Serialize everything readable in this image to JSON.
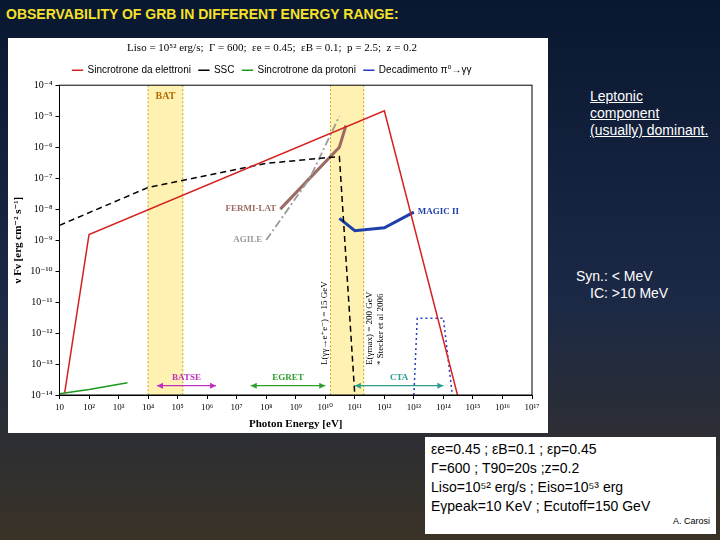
{
  "title": "OBSERVABILITY OF GRB IN DIFFERENT ENERGY RANGE:",
  "notes": [
    "Leptonic component (usually) dominant.",
    "Syn.: < MeV",
    "IC: >10 MeV"
  ],
  "parameters": [
    "εe=0.45 ; εB=0.1 ; εp=0.45",
    "Γ=600 ; T90=20s ;z=0.2",
    "Liso=10⁵² erg/s ; Eiso=10⁵³ erg",
    "Eγpeak=10 KeV ; Ecutoff=150 GeV"
  ],
  "credit": "A. Carosi",
  "chart_data": {
    "type": "line",
    "title": "Liso = 10⁵² erg/s;  Γ = 600;  εe = 0.45;  εB = 0.1;  p = 2.5;  z = 0.2",
    "x_label": "Photon Energy [eV]",
    "y_label": "ν Fν [erg cm⁻² s⁻¹]",
    "log": true,
    "grid": false,
    "legend": "top",
    "xlim": [
      10,
      1e+17
    ],
    "xticks": [
      10,
      {
        "value": 100.0,
        "label": "10²"
      },
      {
        "value": 1000.0,
        "label": "10³"
      },
      {
        "value": 10000.0,
        "label": "10⁴"
      },
      {
        "value": 100000.0,
        "label": "10⁵"
      },
      {
        "value": 1000000.0,
        "label": "10⁶"
      },
      {
        "value": 10000000.0,
        "label": "10⁷"
      },
      {
        "value": 100000000.0,
        "label": "10⁸"
      },
      {
        "value": 1000000000.0,
        "label": "10⁹"
      },
      {
        "value": 10000000000.0,
        "label": "10¹⁰"
      },
      {
        "value": 100000000000.0,
        "label": "10¹¹"
      },
      {
        "value": 1000000000000.0,
        "label": "10¹²"
      },
      {
        "value": 10000000000000.0,
        "label": "10¹³"
      },
      {
        "value": 100000000000000.0,
        "label": "10¹⁴"
      },
      {
        "value": 1000000000000000.0,
        "label": "10¹⁵"
      },
      {
        "value": 1e+16,
        "label": "10¹⁶"
      },
      {
        "value": 1e+17,
        "label": "10¹⁷"
      }
    ],
    "ylim": [
      1e-14,
      0.0001
    ],
    "yticks": [
      {
        "value": 1e-14,
        "label": "10⁻¹⁴"
      },
      {
        "value": 1e-13,
        "label": "10⁻¹³"
      },
      {
        "value": 1e-12,
        "label": "10⁻¹²"
      },
      {
        "value": 1e-11,
        "label": "10⁻¹¹"
      },
      {
        "value": 1e-10,
        "label": "10⁻¹⁰"
      },
      {
        "value": 1e-09,
        "label": "10⁻⁹"
      },
      {
        "value": 1e-08,
        "label": "10⁻⁸"
      },
      {
        "value": 1e-07,
        "label": "10⁻⁷"
      },
      {
        "value": 1e-06,
        "label": "10⁻⁶"
      },
      {
        "value": 1e-05,
        "label": "10⁻⁵"
      },
      {
        "value": 0.0001,
        "label": "10⁻⁴"
      }
    ],
    "series": [
      {
        "name": "Sincrotrone da elettroni",
        "color": "#d62020",
        "line_style": "solid",
        "x": [
          15,
          100,
          1000000000000.0,
          300000000000000.0
        ],
        "values": [
          1.2e-14,
          1.5e-09,
          1.5e-05,
          1e-14
        ]
      },
      {
        "name": "SSC",
        "color": "#000000",
        "line_style": "dashed",
        "x": [
          10,
          10000.0,
          100000000.0,
          30000000000.0,
          100000000000.0
        ],
        "values": [
          3e-09,
          5e-08,
          3e-07,
          5e-07,
          1e-14
        ]
      },
      {
        "name": "Sincrotrone da protoni",
        "color": "#1a9a1a",
        "line_style": "solid",
        "x": [
          10,
          100,
          2000
        ],
        "values": [
          1.1e-14,
          1.5e-14,
          2.5e-14
        ]
      },
      {
        "name": "Decadimento π⁰→γγ",
        "color": "#1f3fbf",
        "line_style": "dotted",
        "x": [
          10000000000000.0,
          13000000000000.0,
          100000000000000.0,
          200000000000000.0
        ],
        "values": [
          1e-14,
          3e-12,
          3e-12,
          1e-14
        ]
      }
    ],
    "instruments": [
      {
        "name": "AGILE",
        "color": "#9a9a9a",
        "line_style": "dashdot",
        "x": [
          100000000.0,
          3000000000.0,
          30000000000.0
        ],
        "values": [
          1e-09,
          1e-07,
          1e-05
        ]
      },
      {
        "name": "FERMI-LAT",
        "color": "#9b6b63",
        "line_style": "solid",
        "x": [
          300000000.0,
          3000000000.0,
          30000000000.0,
          50000000000.0
        ],
        "values": [
          1e-08,
          1e-07,
          1e-06,
          5e-06
        ]
      },
      {
        "name": "MAGIC II",
        "color": "#1c3faa",
        "line_style": "solid",
        "x": [
          30000000000.0,
          100000000000.0,
          1000000000000.0,
          10000000000000.0
        ],
        "values": [
          5e-09,
          2e-09,
          2.5e-09,
          8e-09
        ]
      }
    ],
    "ranges": [
      {
        "name": "CTA",
        "color": "#2a9d8f",
        "x": [
          100000000000.0,
          100000000000000.0
        ],
        "values": [
          2e-14,
          2e-14
        ]
      },
      {
        "name": "BATSE",
        "color": "#c030c0",
        "x": [
          20000.0,
          2000000.0
        ],
        "values": [
          2e-14,
          2e-14
        ]
      },
      {
        "name": "EGRET",
        "color": "#2f9e2f",
        "x": [
          30000000.0,
          10000000000.0
        ],
        "values": [
          2e-14,
          2e-14
        ]
      }
    ],
    "bands": [
      {
        "name": "BAT",
        "x": [
          10000.0,
          150000.0
        ]
      },
      {
        "x": [
          15000000000.0,
          200000000000.0
        ],
        "edge_labels": [
          "L(γγ→e⁺e⁻) = 15 GeV",
          "E(γmax) = 200 GeV",
          "* Stecker et al 2006"
        ]
      }
    ]
  }
}
